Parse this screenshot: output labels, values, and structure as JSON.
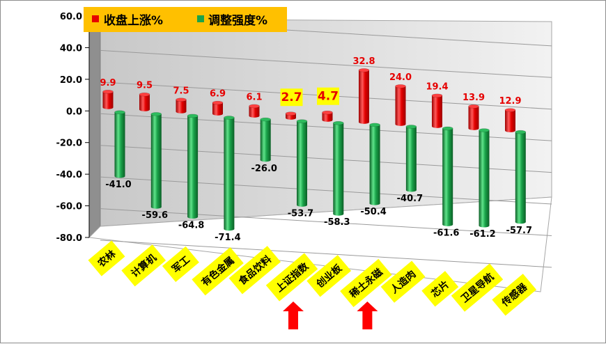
{
  "chart_data": {
    "type": "bar",
    "categories": [
      "农林",
      "计算机",
      "军工",
      "有色金属",
      "食品饮料",
      "上证指数",
      "创业板",
      "稀土永磁",
      "人造肉",
      "芯片",
      "卫星导航",
      "传感器"
    ],
    "series": [
      {
        "name": "收盘上涨%",
        "values": [
          9.9,
          9.5,
          7.5,
          6.9,
          6.1,
          2.7,
          4.7,
          32.8,
          24.0,
          19.4,
          13.9,
          12.9
        ]
      },
      {
        "name": "调整强度%",
        "values": [
          -41.0,
          -59.6,
          -64.8,
          -71.4,
          -26.0,
          -53.7,
          -58.3,
          -50.4,
          -40.7,
          -61.6,
          -61.2,
          -57.7
        ]
      }
    ],
    "value_labels": {
      "rise": [
        "9.9",
        "9.5",
        "7.5",
        "6.9",
        "6.1",
        "2.7",
        "4.7",
        "32.8",
        "24.0",
        "19.4",
        "13.9",
        "12.9"
      ],
      "adjust": [
        "-41.0",
        "-59.6",
        "-64.8",
        "-71.4",
        "-26.0",
        "-53.7",
        "-58.3",
        "-50.4",
        "-40.7",
        "-61.6",
        "-61.2",
        "-57.7"
      ]
    },
    "y_ticks": [
      "60.0",
      "40.0",
      "20.0",
      "0.0",
      "-20.0",
      "-40.0",
      "-60.0",
      "-80.0"
    ],
    "ylim": [
      -80,
      60
    ],
    "highlighted_categories": [
      "上证指数",
      "稀土永磁"
    ],
    "highlighted_values": [
      "上证指数",
      "创业板"
    ],
    "legend_position": "top-left",
    "colors": {
      "rise": "#e60000",
      "adjust": "#1aa34a",
      "label_bg": "#ffff00",
      "legend_bg": "#ffc000",
      "arrow": "#ff0000",
      "wall": "#d9d9d9"
    }
  }
}
